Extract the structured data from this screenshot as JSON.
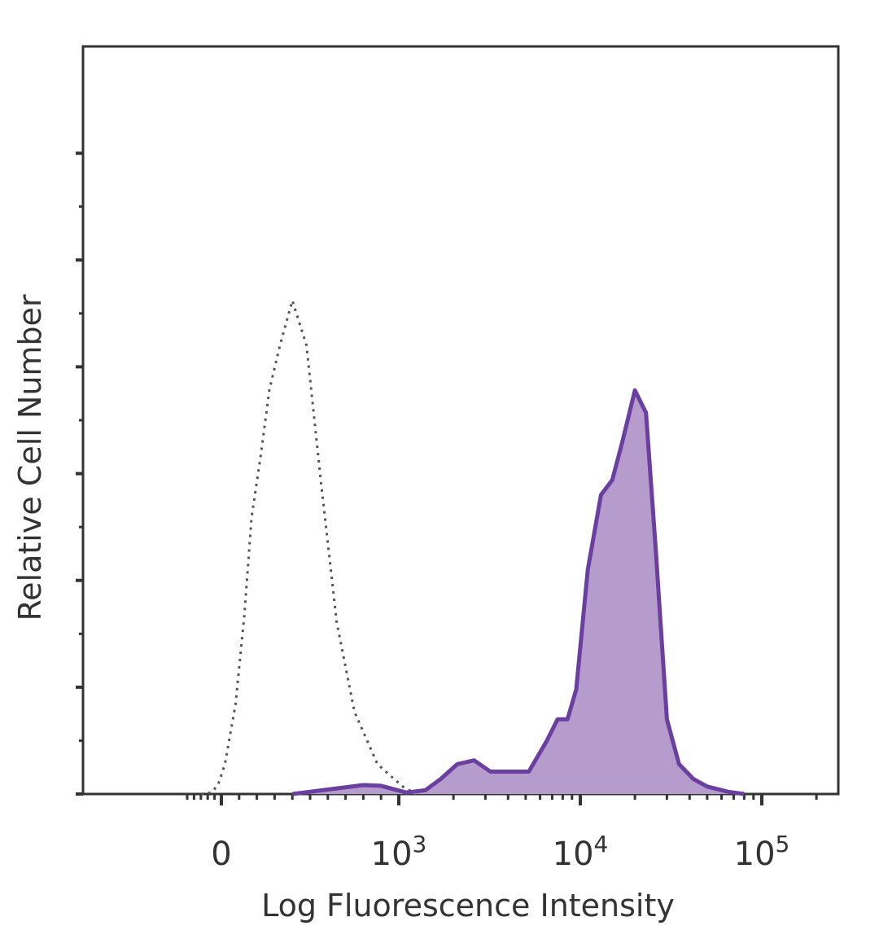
{
  "chart_data": {
    "type": "area",
    "title": "",
    "xlabel": "Log Fluorescence Intensity",
    "ylabel": "Relative Cell Number",
    "x_scale": "biexponential",
    "xlim": [
      -600,
      200000
    ],
    "ylim": [
      0,
      100
    ],
    "grid": false,
    "legend": "none",
    "x_ticks": [
      {
        "value": 0,
        "base": "0",
        "exp": ""
      },
      {
        "value": 1000,
        "base": "10",
        "exp": "3"
      },
      {
        "value": 10000,
        "base": "10",
        "exp": "4"
      },
      {
        "value": 100000,
        "base": "10",
        "exp": "5"
      }
    ],
    "series": [
      {
        "style": "dotted-outline",
        "color": "#555555",
        "x": [
          -300,
          -150,
          -50,
          20,
          80,
          130,
          170,
          220,
          270,
          330,
          400,
          480,
          560,
          650,
          750,
          880,
          1050,
          1250
        ],
        "y": [
          0,
          0.2,
          1.2,
          4,
          12,
          24,
          37,
          45,
          54,
          60,
          66,
          60,
          42,
          23,
          11,
          4,
          1,
          0
        ]
      },
      {
        "style": "filled",
        "color": "#6b3fa0",
        "fill": "#b59ccc",
        "x": [
          400,
          600,
          800,
          900,
          1100,
          1400,
          1700,
          2100,
          2600,
          3200,
          4000,
          5200,
          6500,
          7500,
          8500,
          9500,
          11000,
          13000,
          15000,
          17000,
          20000,
          23000,
          26000,
          30000,
          35000,
          42000,
          50000,
          65000,
          80000
        ],
        "y": [
          0,
          0.6,
          1.2,
          1.1,
          0.2,
          0.5,
          2,
          4,
          4.5,
          3,
          3,
          3,
          7,
          10,
          10,
          14,
          30,
          40,
          42,
          47,
          54,
          51,
          33,
          10,
          4,
          2,
          1,
          0.3,
          0
        ]
      }
    ]
  }
}
